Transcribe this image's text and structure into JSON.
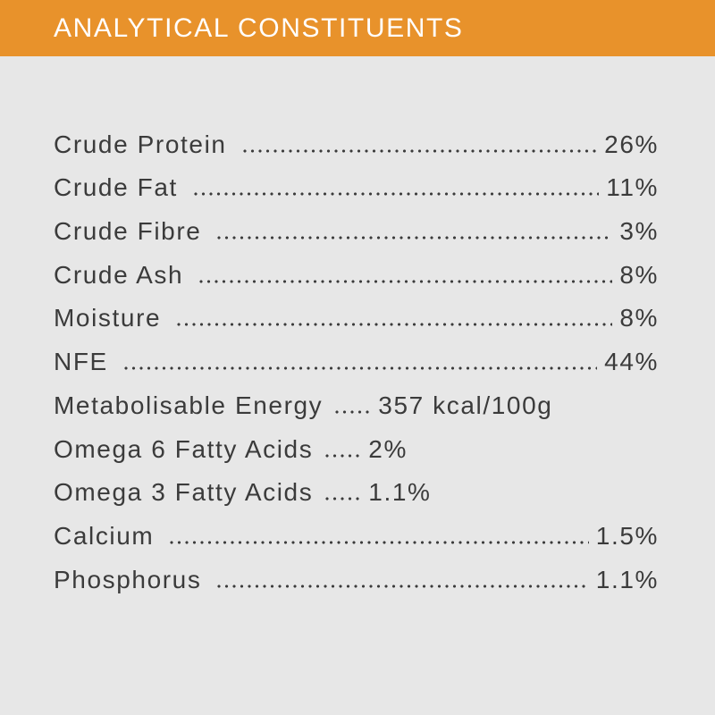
{
  "header": {
    "title": "ANALYTICAL CONSTITUENTS"
  },
  "table": {
    "rows": [
      [
        "Crude Protein",
        "26%"
      ],
      [
        "Crude Fat",
        "11%"
      ],
      [
        "Crude Fibre",
        "3%"
      ],
      [
        "Crude Ash",
        "8%"
      ],
      [
        "Moisture",
        "8%"
      ],
      [
        "NFE",
        "44%"
      ],
      [
        "Metabolisable Energy",
        "357 kcal/100g"
      ],
      [
        "Omega 6 Fatty Acids",
        "2%"
      ],
      [
        "Omega 3 Fatty Acids",
        "1.1%"
      ],
      [
        "Calcium",
        "1.5%"
      ],
      [
        "Phosphorus",
        "1.1%"
      ]
    ]
  }
}
